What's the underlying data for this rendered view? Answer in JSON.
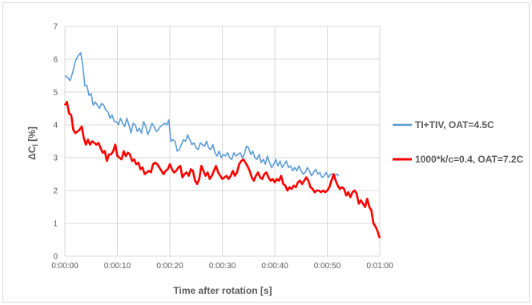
{
  "chart_data": {
    "type": "line",
    "xlabel": "Time after rotation [s]",
    "ylabel_main": "ΔC",
    "ylabel_sub": "l",
    "ylabel_suffix": " [%]",
    "xlim_seconds": [
      0,
      60
    ],
    "ylim": [
      0,
      7
    ],
    "grid": true,
    "legend_position": "right",
    "x_tick_labels": [
      "0:00:00",
      "0:00:10",
      "0:00:20",
      "0:00:30",
      "0:00:40",
      "0:00:50",
      "0:01:00"
    ],
    "y_tick_labels": [
      "0",
      "1",
      "2",
      "3",
      "4",
      "5",
      "6",
      "7"
    ],
    "series": [
      {
        "name": "TI+TIV, OAT=4.5C",
        "color": "#5b9bd5",
        "points": [
          [
            0.0,
            5.5
          ],
          [
            0.5,
            5.45
          ],
          [
            1.0,
            5.35
          ],
          [
            1.5,
            5.6
          ],
          [
            2.0,
            5.95
          ],
          [
            2.5,
            6.1
          ],
          [
            3.0,
            6.2
          ],
          [
            3.4,
            5.8
          ],
          [
            3.8,
            5.2
          ],
          [
            4.2,
            5.2
          ],
          [
            4.6,
            4.9
          ],
          [
            5.0,
            4.95
          ],
          [
            5.4,
            4.6
          ],
          [
            5.8,
            4.7
          ],
          [
            6.2,
            4.6
          ],
          [
            6.6,
            4.5
          ],
          [
            7.0,
            4.65
          ],
          [
            7.4,
            4.6
          ],
          [
            7.8,
            4.45
          ],
          [
            8.2,
            4.4
          ],
          [
            8.6,
            4.2
          ],
          [
            9.0,
            4.3
          ],
          [
            9.4,
            4.1
          ],
          [
            9.8,
            4.1
          ],
          [
            10.2,
            4.0
          ],
          [
            10.6,
            4.2
          ],
          [
            11.0,
            4.05
          ],
          [
            11.4,
            3.95
          ],
          [
            11.8,
            4.2
          ],
          [
            12.2,
            4.0
          ],
          [
            12.6,
            3.75
          ],
          [
            13.0,
            4.05
          ],
          [
            13.4,
            4.0
          ],
          [
            13.8,
            3.8
          ],
          [
            14.2,
            3.9
          ],
          [
            14.6,
            3.75
          ],
          [
            15.0,
            4.1
          ],
          [
            15.4,
            3.95
          ],
          [
            15.8,
            3.7
          ],
          [
            16.2,
            3.85
          ],
          [
            16.6,
            4.05
          ],
          [
            17.0,
            3.95
          ],
          [
            17.4,
            3.8
          ],
          [
            17.8,
            3.85
          ],
          [
            18.2,
            3.95
          ],
          [
            18.6,
            4.0
          ],
          [
            19.0,
            4.05
          ],
          [
            19.4,
            4.0
          ],
          [
            19.8,
            4.15
          ],
          [
            20.2,
            3.5
          ],
          [
            20.6,
            3.55
          ],
          [
            21.0,
            3.5
          ],
          [
            21.4,
            3.2
          ],
          [
            21.8,
            3.25
          ],
          [
            22.2,
            3.4
          ],
          [
            22.6,
            3.55
          ],
          [
            23.0,
            3.5
          ],
          [
            23.4,
            3.7
          ],
          [
            23.8,
            3.55
          ],
          [
            24.2,
            3.4
          ],
          [
            24.6,
            3.45
          ],
          [
            25.0,
            3.3
          ],
          [
            25.4,
            3.25
          ],
          [
            25.8,
            3.45
          ],
          [
            26.2,
            3.4
          ],
          [
            26.6,
            3.35
          ],
          [
            27.0,
            3.5
          ],
          [
            27.4,
            3.3
          ],
          [
            27.8,
            3.25
          ],
          [
            28.2,
            3.4
          ],
          [
            28.6,
            3.15
          ],
          [
            29.0,
            3.05
          ],
          [
            29.4,
            3.2
          ],
          [
            29.8,
            3.0
          ],
          [
            30.2,
            3.1
          ],
          [
            30.6,
            3.05
          ],
          [
            31.0,
            3.15
          ],
          [
            31.4,
            3.0
          ],
          [
            31.8,
            2.95
          ],
          [
            32.2,
            3.15
          ],
          [
            32.6,
            3.05
          ],
          [
            33.0,
            3.1
          ],
          [
            33.4,
            3.15
          ],
          [
            33.8,
            3.0
          ],
          [
            34.2,
            3.1
          ],
          [
            34.6,
            3.35
          ],
          [
            35.0,
            3.3
          ],
          [
            35.4,
            3.1
          ],
          [
            35.8,
            3.2
          ],
          [
            36.2,
            3.0
          ],
          [
            36.6,
            2.95
          ],
          [
            37.0,
            3.1
          ],
          [
            37.4,
            2.85
          ],
          [
            37.8,
            2.95
          ],
          [
            38.2,
            2.8
          ],
          [
            38.6,
            3.05
          ],
          [
            39.0,
            2.85
          ],
          [
            39.4,
            2.7
          ],
          [
            39.8,
            2.8
          ],
          [
            40.2,
            2.95
          ],
          [
            40.6,
            2.75
          ],
          [
            41.0,
            2.9
          ],
          [
            41.4,
            2.7
          ],
          [
            41.8,
            2.8
          ],
          [
            42.2,
            2.9
          ],
          [
            42.6,
            2.7
          ],
          [
            43.0,
            2.75
          ],
          [
            43.4,
            2.6
          ],
          [
            43.8,
            2.7
          ],
          [
            44.2,
            2.6
          ],
          [
            44.6,
            2.75
          ],
          [
            45.0,
            2.6
          ],
          [
            45.4,
            2.5
          ],
          [
            45.8,
            2.55
          ],
          [
            46.2,
            2.7
          ],
          [
            46.6,
            2.6
          ],
          [
            47.0,
            2.45
          ],
          [
            47.4,
            2.55
          ],
          [
            47.8,
            2.65
          ],
          [
            48.2,
            2.5
          ],
          [
            48.6,
            2.55
          ],
          [
            49.0,
            2.4
          ],
          [
            49.4,
            2.45
          ],
          [
            49.8,
            2.55
          ],
          [
            50.2,
            2.4
          ],
          [
            50.6,
            2.5
          ],
          [
            51.0,
            2.5
          ],
          [
            51.4,
            2.45
          ],
          [
            51.8,
            2.5
          ],
          [
            52.2,
            2.45
          ]
        ]
      },
      {
        "name": "1000*k/c=0.4, OAT=7.2C",
        "color": "#ff0000",
        "points": [
          [
            0.0,
            4.6
          ],
          [
            0.4,
            4.7
          ],
          [
            0.8,
            4.35
          ],
          [
            1.2,
            4.3
          ],
          [
            1.6,
            3.85
          ],
          [
            2.0,
            3.75
          ],
          [
            2.4,
            3.8
          ],
          [
            2.8,
            3.85
          ],
          [
            3.2,
            3.95
          ],
          [
            3.6,
            3.6
          ],
          [
            4.0,
            3.4
          ],
          [
            4.4,
            3.55
          ],
          [
            4.8,
            3.4
          ],
          [
            5.2,
            3.5
          ],
          [
            5.6,
            3.45
          ],
          [
            6.0,
            3.4
          ],
          [
            6.4,
            3.45
          ],
          [
            6.8,
            3.3
          ],
          [
            7.2,
            3.15
          ],
          [
            7.6,
            3.2
          ],
          [
            8.0,
            2.9
          ],
          [
            8.4,
            3.1
          ],
          [
            8.8,
            3.1
          ],
          [
            9.2,
            3.2
          ],
          [
            9.6,
            3.4
          ],
          [
            10.0,
            3.05
          ],
          [
            10.4,
            3.0
          ],
          [
            10.8,
            2.95
          ],
          [
            11.2,
            3.2
          ],
          [
            11.6,
            3.05
          ],
          [
            12.0,
            3.15
          ],
          [
            12.4,
            3.1
          ],
          [
            12.8,
            2.9
          ],
          [
            13.2,
            2.95
          ],
          [
            13.6,
            2.8
          ],
          [
            14.0,
            2.85
          ],
          [
            14.4,
            2.65
          ],
          [
            14.8,
            2.7
          ],
          [
            15.2,
            2.5
          ],
          [
            15.6,
            2.55
          ],
          [
            16.0,
            2.6
          ],
          [
            16.4,
            2.55
          ],
          [
            16.8,
            2.8
          ],
          [
            17.2,
            2.85
          ],
          [
            17.6,
            2.8
          ],
          [
            18.0,
            2.7
          ],
          [
            18.4,
            2.6
          ],
          [
            18.8,
            2.5
          ],
          [
            19.2,
            2.6
          ],
          [
            19.6,
            2.65
          ],
          [
            20.0,
            2.8
          ],
          [
            20.4,
            2.65
          ],
          [
            20.8,
            2.55
          ],
          [
            21.2,
            2.6
          ],
          [
            21.6,
            2.7
          ],
          [
            22.0,
            2.75
          ],
          [
            22.4,
            2.4
          ],
          [
            22.8,
            2.5
          ],
          [
            23.2,
            2.55
          ],
          [
            23.6,
            2.45
          ],
          [
            24.0,
            2.65
          ],
          [
            24.4,
            2.6
          ],
          [
            24.8,
            2.3
          ],
          [
            25.2,
            2.2
          ],
          [
            25.6,
            2.35
          ],
          [
            26.0,
            2.75
          ],
          [
            26.4,
            2.6
          ],
          [
            26.8,
            2.45
          ],
          [
            27.2,
            2.55
          ],
          [
            27.6,
            2.35
          ],
          [
            28.0,
            2.45
          ],
          [
            28.4,
            2.6
          ],
          [
            28.8,
            2.75
          ],
          [
            29.2,
            2.55
          ],
          [
            29.6,
            2.45
          ],
          [
            30.0,
            2.35
          ],
          [
            30.4,
            2.4
          ],
          [
            30.8,
            2.45
          ],
          [
            31.2,
            2.35
          ],
          [
            31.6,
            2.45
          ],
          [
            32.0,
            2.6
          ],
          [
            32.4,
            2.45
          ],
          [
            32.8,
            2.55
          ],
          [
            33.2,
            2.8
          ],
          [
            33.6,
            2.9
          ],
          [
            34.0,
            2.95
          ],
          [
            34.4,
            2.85
          ],
          [
            34.8,
            2.75
          ],
          [
            35.2,
            2.6
          ],
          [
            35.6,
            2.4
          ],
          [
            36.0,
            2.3
          ],
          [
            36.4,
            2.45
          ],
          [
            36.8,
            2.55
          ],
          [
            37.2,
            2.4
          ],
          [
            37.6,
            2.35
          ],
          [
            38.0,
            2.5
          ],
          [
            38.4,
            2.55
          ],
          [
            38.8,
            2.4
          ],
          [
            39.2,
            2.3
          ],
          [
            39.6,
            2.35
          ],
          [
            40.0,
            2.25
          ],
          [
            40.4,
            2.35
          ],
          [
            40.8,
            2.3
          ],
          [
            41.2,
            2.45
          ],
          [
            41.6,
            2.2
          ],
          [
            42.0,
            2.15
          ],
          [
            42.4,
            2.0
          ],
          [
            42.8,
            2.1
          ],
          [
            43.2,
            2.05
          ],
          [
            43.6,
            2.15
          ],
          [
            44.0,
            2.1
          ],
          [
            44.4,
            2.25
          ],
          [
            44.8,
            2.3
          ],
          [
            45.2,
            2.2
          ],
          [
            45.6,
            2.3
          ],
          [
            46.0,
            2.4
          ],
          [
            46.4,
            2.3
          ],
          [
            46.8,
            2.1
          ],
          [
            47.2,
            2.05
          ],
          [
            47.6,
            1.95
          ],
          [
            48.0,
            2.0
          ],
          [
            48.4,
            2.0
          ],
          [
            48.8,
            1.95
          ],
          [
            49.2,
            2.0
          ],
          [
            49.6,
            1.95
          ],
          [
            50.0,
            2.0
          ],
          [
            50.4,
            2.1
          ],
          [
            50.8,
            2.3
          ],
          [
            51.2,
            2.5
          ],
          [
            51.6,
            2.3
          ],
          [
            52.0,
            2.15
          ],
          [
            52.4,
            2.05
          ],
          [
            52.8,
            2.1
          ],
          [
            53.2,
            2.05
          ],
          [
            53.6,
            1.85
          ],
          [
            54.0,
            1.95
          ],
          [
            54.4,
            1.8
          ],
          [
            54.8,
            1.95
          ],
          [
            55.2,
            2.0
          ],
          [
            55.6,
            1.9
          ],
          [
            56.0,
            1.6
          ],
          [
            56.4,
            1.7
          ],
          [
            56.8,
            1.6
          ],
          [
            57.2,
            1.5
          ],
          [
            57.6,
            1.75
          ],
          [
            58.0,
            1.5
          ],
          [
            58.4,
            1.4
          ],
          [
            58.8,
            1.0
          ],
          [
            59.2,
            0.9
          ],
          [
            59.6,
            0.75
          ],
          [
            60.0,
            0.55
          ]
        ]
      }
    ]
  }
}
